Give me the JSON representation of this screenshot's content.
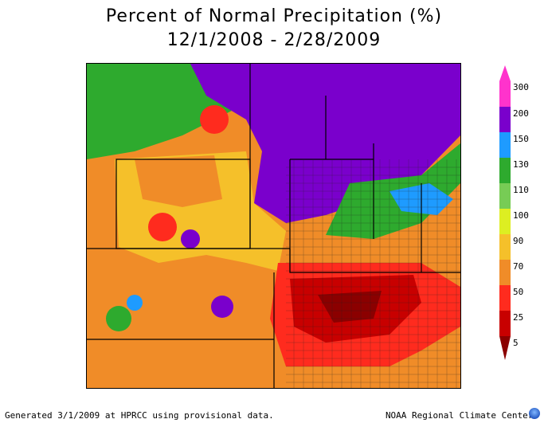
{
  "title_line1": "Percent of Normal Precipitation (%)",
  "title_line2": "12/1/2008 - 2/28/2009",
  "legend": {
    "labels": [
      "300",
      "200",
      "150",
      "130",
      "110",
      "100",
      "90",
      "70",
      "50",
      "25",
      "5"
    ],
    "colors": {
      "300": "#ff33cc",
      "200": "#7a00cc",
      "150": "#1e9bff",
      "130": "#2eaa2e",
      "110": "#77cc55",
      "100": "#ddee22",
      "90": "#f5c02a",
      "70": "#f08c28",
      "50": "#ff2b1e",
      "25": "#c80000",
      "5": "#8b0000"
    }
  },
  "footer_left": "Generated 3/1/2009 at HPRCC using provisional data.",
  "footer_right": "NOAA Regional Climate Centers",
  "icon": "noaa-logo-icon"
}
